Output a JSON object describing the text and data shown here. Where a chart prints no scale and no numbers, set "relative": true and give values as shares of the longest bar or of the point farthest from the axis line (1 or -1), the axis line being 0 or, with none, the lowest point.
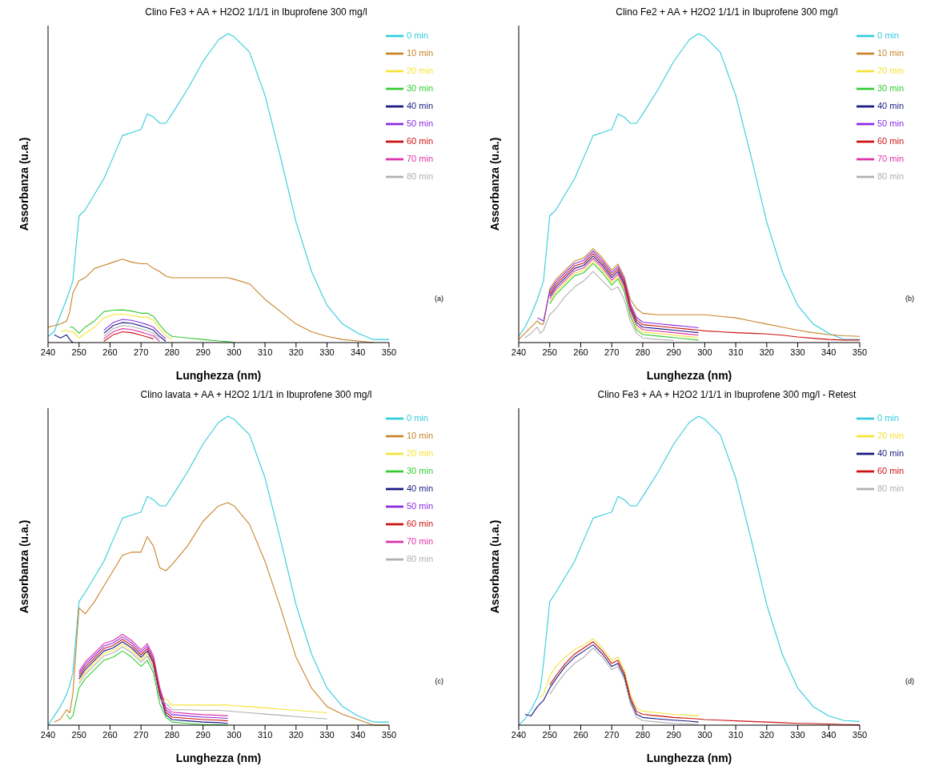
{
  "chart_data": [
    {
      "type": "line",
      "title": "Clino Fe3 + AA + H2O2 1/1/1 in Ibuprofene 300 mg/l",
      "xlabel": "Lunghezza (nm)",
      "ylabel": "Assorbanza (u.a.)",
      "relative": true,
      "legend": "top right",
      "annotations": [
        "(a)"
      ],
      "xlim": [
        240,
        350
      ],
      "xticks": [
        240,
        250,
        260,
        270,
        280,
        290,
        300,
        310,
        320,
        330,
        340,
        350
      ],
      "x": [
        240,
        242,
        244,
        246,
        247,
        248,
        250,
        252,
        255,
        258,
        261,
        264,
        267,
        270,
        272,
        274,
        276,
        278,
        280,
        285,
        290,
        295,
        298,
        300,
        305,
        310,
        315,
        320,
        325,
        330,
        335,
        340,
        345,
        350
      ],
      "series": [
        {
          "name": "0 min",
          "color": "#33ccdd",
          "values": [
            0.02,
            0.035,
            0.09,
            0.14,
            0.17,
            0.2,
            0.41,
            0.43,
            0.48,
            0.53,
            0.6,
            0.67,
            0.68,
            0.69,
            0.74,
            0.73,
            0.71,
            0.71,
            0.74,
            0.82,
            0.91,
            0.98,
            1,
            0.99,
            0.94,
            0.8,
            0.6,
            0.39,
            0.23,
            0.12,
            0.06,
            0.03,
            0.01,
            0.01
          ]
        },
        {
          "name": "10 min",
          "color": "#c8842a",
          "values": [
            0.05,
            0.055,
            0.06,
            0.07,
            0.1,
            0.16,
            0.2,
            0.21,
            0.24,
            0.25,
            0.26,
            0.27,
            0.26,
            0.255,
            0.255,
            0.24,
            0.23,
            0.215,
            0.21,
            0.21,
            0.21,
            0.21,
            0.21,
            0.205,
            0.19,
            0.14,
            0.1,
            0.06,
            0.035,
            0.02,
            0.01,
            0.005,
            0,
            null
          ]
        },
        {
          "name": "20 min",
          "color": "#f5e33a",
          "values": [
            null,
            null,
            0.035,
            0.04,
            0.035,
            0.035,
            0.015,
            0.03,
            0.05,
            0.08,
            0.09,
            0.092,
            0.088,
            0.082,
            0.082,
            0.072,
            0.045,
            0.022,
            0.01,
            null,
            null,
            null,
            null,
            null,
            null,
            null,
            null,
            null,
            null,
            null,
            null,
            null,
            null,
            null
          ]
        },
        {
          "name": "30 min",
          "color": "#33cc33",
          "values": [
            null,
            null,
            null,
            null,
            0.05,
            0.05,
            0.03,
            0.05,
            0.07,
            0.1,
            0.105,
            0.106,
            0.102,
            0.095,
            0.095,
            0.085,
            0.058,
            0.034,
            0.02,
            0.015,
            0.01,
            0.005,
            0.003,
            0,
            null,
            null,
            null,
            null,
            null,
            null,
            null,
            null,
            null,
            null
          ]
        },
        {
          "name": "40 min",
          "color": "#1a1a80",
          "values": [
            null,
            0.025,
            0.015,
            0.025,
            0.01,
            0,
            null,
            null,
            null,
            0.03,
            0.055,
            0.065,
            0.062,
            0.054,
            0.048,
            0.04,
            0.02,
            0.004,
            null,
            null,
            null,
            null,
            null,
            null,
            null,
            null,
            null,
            null,
            null,
            null,
            null,
            null,
            null,
            null
          ]
        },
        {
          "name": "50 min",
          "color": "#8a2be2",
          "values": [
            null,
            null,
            null,
            null,
            null,
            null,
            null,
            null,
            null,
            0.04,
            0.065,
            0.075,
            0.072,
            0.064,
            0.058,
            0.05,
            0.03,
            0.012,
            null,
            null,
            null,
            null,
            null,
            null,
            null,
            null,
            null,
            null,
            null,
            null,
            null,
            null,
            null,
            null
          ]
        },
        {
          "name": "60 min",
          "color": "#cc1111",
          "values": [
            null,
            null,
            null,
            null,
            null,
            null,
            null,
            null,
            null,
            0.004,
            0.025,
            0.035,
            0.032,
            0.024,
            0.018,
            0.012,
            null,
            null,
            null,
            null,
            null,
            null,
            null,
            null,
            null,
            null,
            null,
            null,
            null,
            null,
            null,
            null,
            null,
            null
          ]
        },
        {
          "name": "70 min",
          "color": "#dd33aa",
          "values": [
            null,
            null,
            null,
            null,
            null,
            null,
            null,
            null,
            null,
            0.012,
            0.035,
            0.045,
            0.042,
            0.034,
            0.028,
            0.022,
            0.004,
            null,
            null,
            null,
            null,
            null,
            null,
            null,
            null,
            null,
            null,
            null,
            null,
            null,
            null,
            null,
            null,
            null
          ]
        },
        {
          "name": "80 min",
          "color": "#b0b0b0",
          "values": [
            null,
            null,
            null,
            null,
            null,
            null,
            null,
            null,
            null,
            0.02,
            0.045,
            0.055,
            0.052,
            0.044,
            0.038,
            0.03,
            0.012,
            null,
            null,
            null,
            null,
            null,
            null,
            null,
            null,
            null,
            null,
            null,
            null,
            null,
            null,
            null,
            null,
            null
          ]
        }
      ]
    },
    {
      "type": "line",
      "title": "Clino Fe2 + AA + H2O2 1/1/1 in Ibuprofene 300 mg/l",
      "xlabel": "Lunghezza (nm)",
      "ylabel": "Assorbanza (u.a.)",
      "relative": true,
      "legend": "top right",
      "annotations": [
        "(b)"
      ],
      "xlim": [
        240,
        350
      ],
      "xticks": [
        240,
        250,
        260,
        270,
        280,
        290,
        300,
        310,
        320,
        330,
        340,
        350
      ],
      "x": [
        240,
        242,
        244,
        246,
        247,
        248,
        250,
        252,
        255,
        258,
        261,
        264,
        267,
        270,
        272,
        274,
        276,
        278,
        280,
        285,
        290,
        295,
        298,
        300,
        305,
        310,
        315,
        320,
        325,
        330,
        335,
        340,
        345,
        350
      ],
      "series": [
        {
          "name": "0 min",
          "color": "#33ccdd",
          "values": [
            0.02,
            0.05,
            0.09,
            0.14,
            0.17,
            0.2,
            0.41,
            0.43,
            0.48,
            0.53,
            0.6,
            0.67,
            0.68,
            0.69,
            0.74,
            0.73,
            0.71,
            0.71,
            0.74,
            0.82,
            0.91,
            0.98,
            1,
            0.99,
            0.94,
            0.8,
            0.6,
            0.39,
            0.23,
            0.12,
            0.06,
            0.03,
            0.01,
            0.01
          ]
        },
        {
          "name": "10 min",
          "color": "#c8842a",
          "values": [
            0.01,
            0.03,
            0.05,
            0.07,
            0.06,
            0.06,
            0.174,
            0.204,
            0.234,
            0.264,
            0.274,
            0.304,
            0.274,
            0.234,
            0.254,
            0.214,
            0.14,
            0.11,
            0.095,
            0.09,
            0.09,
            0.09,
            0.09,
            0.09,
            0.085,
            0.08,
            0.07,
            0.06,
            0.05,
            0.04,
            0.032,
            0.026,
            0.022,
            0.02
          ]
        },
        {
          "name": "20 min",
          "color": "#f5e33a",
          "values": [
            null,
            null,
            null,
            null,
            null,
            null,
            0.134,
            0.164,
            0.194,
            0.224,
            0.234,
            0.264,
            0.234,
            0.194,
            0.214,
            0.174,
            0.094,
            0.049,
            0.034,
            0.029,
            0.024,
            0.019,
            0.016,
            null,
            null,
            null,
            null,
            null,
            null,
            null,
            null,
            null,
            null,
            null
          ]
        },
        {
          "name": "30 min",
          "color": "#33cc33",
          "values": [
            null,
            null,
            null,
            null,
            null,
            null,
            0.126,
            0.156,
            0.186,
            0.216,
            0.226,
            0.256,
            0.226,
            0.186,
            0.206,
            0.166,
            0.086,
            0.041,
            0.026,
            0.021,
            0.016,
            0.011,
            0.008,
            null,
            null,
            null,
            null,
            null,
            null,
            null,
            null,
            null,
            null,
            null
          ]
        },
        {
          "name": "40 min",
          "color": "#1a1a80",
          "values": [
            null,
            null,
            null,
            null,
            null,
            null,
            0.15,
            0.18,
            0.21,
            0.24,
            0.25,
            0.28,
            0.25,
            0.21,
            0.23,
            0.19,
            0.11,
            0.065,
            0.05,
            0.045,
            0.04,
            0.035,
            0.032,
            null,
            null,
            null,
            null,
            null,
            null,
            null,
            null,
            null,
            null,
            null
          ]
        },
        {
          "name": "50 min",
          "color": "#8a2be2",
          "values": [
            null,
            null,
            null,
            0.08,
            0.075,
            0.07,
            0.166,
            0.196,
            0.226,
            0.256,
            0.266,
            0.296,
            0.266,
            0.226,
            0.246,
            0.206,
            0.126,
            0.081,
            0.066,
            0.061,
            0.056,
            0.051,
            0.048,
            null,
            null,
            null,
            null,
            null,
            null,
            null,
            null,
            null,
            null,
            null
          ]
        },
        {
          "name": "60 min",
          "color": "#cc1111",
          "values": [
            null,
            null,
            null,
            null,
            null,
            null,
            0.158,
            0.188,
            0.218,
            0.248,
            0.258,
            0.288,
            0.258,
            0.218,
            0.238,
            0.198,
            0.118,
            0.073,
            0.058,
            0.053,
            0.048,
            0.043,
            0.04,
            0.038,
            0.035,
            0.032,
            0.03,
            0.028,
            0.024,
            0.018,
            0.014,
            0.01,
            0.008,
            0.008
          ]
        },
        {
          "name": "70 min",
          "color": "#dd33aa",
          "values": [
            null,
            null,
            null,
            null,
            null,
            null,
            0.142,
            0.172,
            0.202,
            0.232,
            0.242,
            0.272,
            0.242,
            0.202,
            0.222,
            0.182,
            0.102,
            0.057,
            0.042,
            0.037,
            0.032,
            0.027,
            0.024,
            null,
            null,
            null,
            null,
            null,
            null,
            null,
            null,
            null,
            null,
            null
          ]
        },
        {
          "name": "80 min",
          "color": "#b0b0b0",
          "values": [
            null,
            0.015,
            0.03,
            0.05,
            0.03,
            0.04,
            0.09,
            0.11,
            0.15,
            0.18,
            0.2,
            0.23,
            0.2,
            0.17,
            0.18,
            0.14,
            0.07,
            0.03,
            0.015,
            0.01,
            0.007,
            null,
            null,
            null,
            null,
            null,
            null,
            null,
            null,
            null,
            null,
            null,
            null,
            null
          ]
        }
      ]
    },
    {
      "type": "line",
      "title": "Clino lavata + AA + H2O2 1/1/1 in Ibuprofene 300 mg/l",
      "xlabel": "Lunghezza (nm)",
      "ylabel": "Assorbanza (u.a.)",
      "relative": true,
      "legend": "top right",
      "annotations": [
        "(c)"
      ],
      "xlim": [
        240,
        350
      ],
      "xticks": [
        240,
        250,
        260,
        270,
        280,
        290,
        300,
        310,
        320,
        330,
        340,
        350
      ],
      "x": [
        240,
        242,
        244,
        246,
        247,
        248,
        250,
        252,
        255,
        258,
        261,
        264,
        267,
        270,
        272,
        274,
        276,
        278,
        280,
        285,
        290,
        295,
        298,
        300,
        305,
        310,
        315,
        320,
        325,
        330,
        335,
        340,
        345,
        350
      ],
      "series": [
        {
          "name": "0 min",
          "color": "#33ccdd",
          "values": [
            0,
            0.03,
            0.06,
            0.1,
            0.13,
            0.17,
            0.4,
            0.43,
            0.48,
            0.53,
            0.6,
            0.67,
            0.68,
            0.69,
            0.74,
            0.73,
            0.71,
            0.71,
            0.74,
            0.82,
            0.91,
            0.98,
            1,
            0.99,
            0.94,
            0.8,
            0.6,
            0.39,
            0.23,
            0.12,
            0.06,
            0.03,
            0.01,
            0.01
          ]
        },
        {
          "name": "10 min",
          "color": "#c8842a",
          "values": [
            null,
            0.01,
            0.02,
            0.05,
            0.04,
            0.1,
            0.38,
            0.36,
            0.4,
            0.45,
            0.5,
            0.55,
            0.56,
            0.56,
            0.61,
            0.58,
            0.51,
            0.5,
            0.52,
            0.58,
            0.66,
            0.71,
            0.72,
            0.71,
            0.65,
            0.53,
            0.38,
            0.22,
            0.12,
            0.06,
            0.035,
            0.018,
            0,
            0
          ]
        },
        {
          "name": "20 min",
          "color": "#f5e33a",
          "values": [
            null,
            null,
            null,
            null,
            null,
            null,
            0.142,
            0.172,
            0.202,
            0.232,
            0.242,
            0.262,
            0.242,
            0.212,
            0.232,
            0.192,
            0.092,
            0.085,
            0.065,
            0.065,
            0.065,
            0.065,
            0.065,
            0.063,
            0.06,
            0.056,
            0.052,
            0.048,
            0.044,
            0.04,
            null,
            null,
            null,
            null
          ]
        },
        {
          "name": "30 min",
          "color": "#33cc33",
          "values": [
            null,
            null,
            null,
            0.035,
            0.02,
            0.03,
            0.12,
            0.15,
            0.18,
            0.21,
            0.22,
            0.24,
            0.22,
            0.19,
            0.21,
            0.17,
            0.07,
            0.026,
            0.01,
            0.006,
            0.002,
            0.001,
            0,
            null,
            null,
            null,
            null,
            null,
            null,
            null,
            null,
            null,
            null,
            null
          ]
        },
        {
          "name": "40 min",
          "color": "#1a1a80",
          "values": [
            null,
            null,
            null,
            null,
            null,
            null,
            0.15,
            0.18,
            0.21,
            0.24,
            0.25,
            0.27,
            0.25,
            0.22,
            0.24,
            0.2,
            0.1,
            0.034,
            0.018,
            0.014,
            0.01,
            0.008,
            0.006,
            null,
            null,
            null,
            null,
            null,
            null,
            null,
            null,
            null,
            null,
            null
          ]
        },
        {
          "name": "50 min",
          "color": "#8a2be2",
          "values": [
            null,
            null,
            null,
            null,
            null,
            null,
            0.166,
            0.196,
            0.226,
            0.256,
            0.266,
            0.286,
            0.266,
            0.236,
            0.256,
            0.216,
            0.116,
            0.05,
            0.034,
            0.03,
            0.026,
            0.024,
            0.022,
            null,
            null,
            null,
            null,
            null,
            null,
            null,
            null,
            null,
            null,
            null
          ]
        },
        {
          "name": "60 min",
          "color": "#cc1111",
          "values": [
            null,
            null,
            null,
            null,
            null,
            null,
            0.158,
            0.188,
            0.218,
            0.248,
            0.258,
            0.278,
            0.258,
            0.228,
            0.248,
            0.208,
            0.108,
            0.042,
            0.026,
            0.022,
            0.018,
            0.016,
            0.014,
            null,
            null,
            null,
            null,
            null,
            null,
            null,
            null,
            null,
            null,
            null
          ]
        },
        {
          "name": "70 min",
          "color": "#dd33aa",
          "values": [
            null,
            null,
            null,
            null,
            null,
            null,
            0.174,
            0.204,
            0.234,
            0.264,
            0.274,
            0.294,
            0.274,
            0.244,
            0.264,
            0.224,
            0.124,
            0.058,
            0.042,
            0.038,
            0.034,
            0.032,
            0.03,
            null,
            null,
            null,
            null,
            null,
            null,
            null,
            null,
            null,
            null,
            null
          ]
        },
        {
          "name": "80 min",
          "color": "#b0b0b0",
          "values": [
            null,
            null,
            null,
            null,
            null,
            null,
            0.134,
            0.164,
            0.194,
            0.224,
            0.234,
            0.254,
            0.234,
            0.204,
            0.224,
            0.184,
            0.084,
            0.07,
            0.05,
            0.05,
            0.048,
            0.048,
            0.046,
            0.044,
            0.04,
            0.036,
            0.032,
            0.028,
            0.024,
            0.02,
            null,
            null,
            null,
            null
          ]
        }
      ]
    },
    {
      "type": "line",
      "title": "Clino Fe3 + AA + H2O2 1/1/1 in Ibuprofene 300 mg/l - Retest",
      "xlabel": "Lunghezza (nm)",
      "ylabel": "Assorbanza (u.a.)",
      "relative": true,
      "legend": "top right",
      "annotations": [
        "(d)"
      ],
      "xlim": [
        240,
        350
      ],
      "xticks": [
        240,
        250,
        260,
        270,
        280,
        290,
        300,
        310,
        320,
        330,
        340,
        350
      ],
      "x": [
        240,
        242,
        244,
        246,
        247,
        248,
        250,
        252,
        255,
        258,
        261,
        264,
        267,
        270,
        272,
        274,
        276,
        278,
        280,
        285,
        290,
        295,
        298,
        300,
        305,
        310,
        315,
        320,
        325,
        330,
        335,
        340,
        345,
        350
      ],
      "series": [
        {
          "name": "0 min",
          "color": "#33ccdd",
          "values": [
            0,
            0.02,
            0.05,
            0.09,
            0.12,
            0.2,
            0.4,
            0.43,
            0.48,
            0.53,
            0.6,
            0.67,
            0.68,
            0.69,
            0.74,
            0.73,
            0.71,
            0.71,
            0.74,
            0.82,
            0.91,
            0.98,
            1,
            0.99,
            0.94,
            0.8,
            0.6,
            0.39,
            0.23,
            0.12,
            0.06,
            0.03,
            0.015,
            0.012
          ]
        },
        {
          "name": "20 min",
          "color": "#f5e33a",
          "values": [
            null,
            null,
            null,
            null,
            0.09,
            0.1,
            0.16,
            0.19,
            0.22,
            0.245,
            0.26,
            0.28,
            0.25,
            0.21,
            0.22,
            0.18,
            0.1,
            0.055,
            0.045,
            0.04,
            0.035,
            0.032,
            0.03,
            null,
            null,
            null,
            null,
            null,
            null,
            null,
            null,
            null,
            null,
            null
          ]
        },
        {
          "name": "40 min",
          "color": "#1a1a80",
          "values": [
            null,
            0.035,
            0.03,
            0.06,
            0.07,
            0.08,
            0.12,
            0.15,
            0.19,
            0.22,
            0.24,
            0.26,
            0.23,
            0.19,
            0.2,
            0.16,
            0.08,
            0.035,
            0.025,
            0.02,
            0.016,
            0.013,
            0.01,
            null,
            null,
            null,
            null,
            null,
            null,
            null,
            null,
            null,
            null,
            null
          ]
        },
        {
          "name": "60 min",
          "color": "#cc1111",
          "values": [
            null,
            null,
            null,
            null,
            null,
            null,
            0.13,
            0.16,
            0.2,
            0.23,
            0.25,
            0.27,
            0.24,
            0.2,
            0.21,
            0.17,
            0.09,
            0.045,
            0.035,
            0.03,
            0.025,
            0.022,
            0.02,
            0.018,
            0.016,
            0.014,
            0.012,
            0.01,
            0.008,
            0.006,
            0.005,
            0.004,
            0.002,
            0.001
          ]
        },
        {
          "name": "80 min",
          "color": "#b0b0b0",
          "values": [
            null,
            null,
            null,
            null,
            null,
            null,
            0.1,
            0.13,
            0.17,
            0.2,
            0.22,
            0.25,
            0.22,
            0.18,
            0.19,
            0.15,
            0.07,
            0.025,
            0.015,
            0.01,
            0.006,
            0.004,
            0.002,
            null,
            null,
            null,
            null,
            null,
            null,
            null,
            null,
            null,
            null,
            null
          ]
        }
      ]
    }
  ]
}
